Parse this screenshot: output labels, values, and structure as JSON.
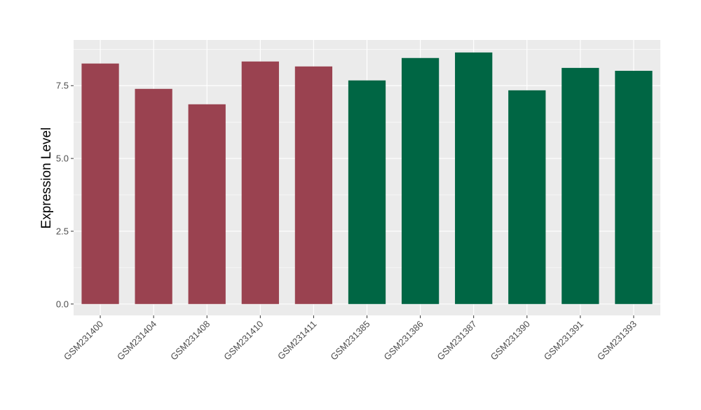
{
  "chart_data": {
    "type": "bar",
    "title": "",
    "xlabel": "",
    "ylabel": "Expression Level",
    "ylim": [
      -0.39,
      9.07
    ],
    "yticks": [
      "0.0",
      "2.5",
      "5.0",
      "7.5"
    ],
    "ytick_values": [
      0,
      2.5,
      5,
      7.5
    ],
    "grid": true,
    "categories": [
      "GSM231400",
      "GSM231404",
      "GSM231408",
      "GSM231410",
      "GSM231411",
      "GSM231385",
      "GSM231386",
      "GSM231387",
      "GSM231390",
      "GSM231391",
      "GSM231393"
    ],
    "values": [
      8.26,
      7.39,
      6.86,
      8.33,
      8.16,
      7.68,
      8.45,
      8.64,
      7.34,
      8.11,
      8.01
    ],
    "groups": [
      0,
      0,
      0,
      0,
      0,
      1,
      1,
      1,
      1,
      1,
      1
    ],
    "colors": [
      "#9A4250",
      "#006644"
    ],
    "panel_color": "#EBEBEB"
  }
}
